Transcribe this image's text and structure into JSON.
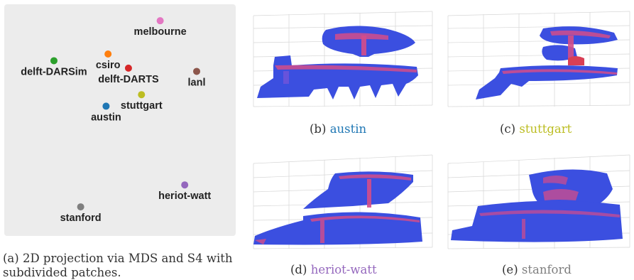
{
  "chart_data": {
    "type": "scatter",
    "title": "",
    "xlabel": "",
    "ylabel": "",
    "xlim": [
      0,
      100
    ],
    "ylim": [
      0,
      100
    ],
    "grid": false,
    "points": [
      {
        "label": "melbourne",
        "x": 68.5,
        "y": 95.7,
        "color": "#e377c2",
        "label_pos": "below"
      },
      {
        "label": "delft-DARSim",
        "x": 19.6,
        "y": 77.3,
        "color": "#2ca02c",
        "label_pos": "below"
      },
      {
        "label": "csiro",
        "x": 44.5,
        "y": 80.4,
        "color": "#ff7f0e",
        "label_pos": "below"
      },
      {
        "label": "delft-DARTS",
        "x": 53.9,
        "y": 73.9,
        "color": "#d62728",
        "label_pos": "below"
      },
      {
        "label": "lanl",
        "x": 85.3,
        "y": 72.4,
        "color": "#8c564b",
        "label_pos": "below"
      },
      {
        "label": "stuttgart",
        "x": 59.9,
        "y": 61.7,
        "color": "#bcbd22",
        "label_pos": "below"
      },
      {
        "label": "austin",
        "x": 43.6,
        "y": 56.4,
        "color": "#1f77b4",
        "label_pos": "below"
      },
      {
        "label": "heriot-watt",
        "x": 79.8,
        "y": 20.2,
        "color": "#9467bd",
        "label_pos": "below"
      },
      {
        "label": "stanford",
        "x": 31.9,
        "y": 10.1,
        "color": "#7f7f7f",
        "label_pos": "below"
      }
    ]
  },
  "captions": {
    "a": "(a) 2D projection via MDS and S4 with subdivided patches.",
    "b": {
      "prefix": "(b) ",
      "name": "austin",
      "color": "#1f77b4"
    },
    "c": {
      "prefix": "(c) ",
      "name": "stuttgart",
      "color": "#bcbd22"
    },
    "d": {
      "prefix": "(d) ",
      "name": "heriot-watt",
      "color": "#9467bd"
    },
    "e": {
      "prefix": "(e) ",
      "name": "stanford",
      "color": "#7f7f7f"
    }
  }
}
